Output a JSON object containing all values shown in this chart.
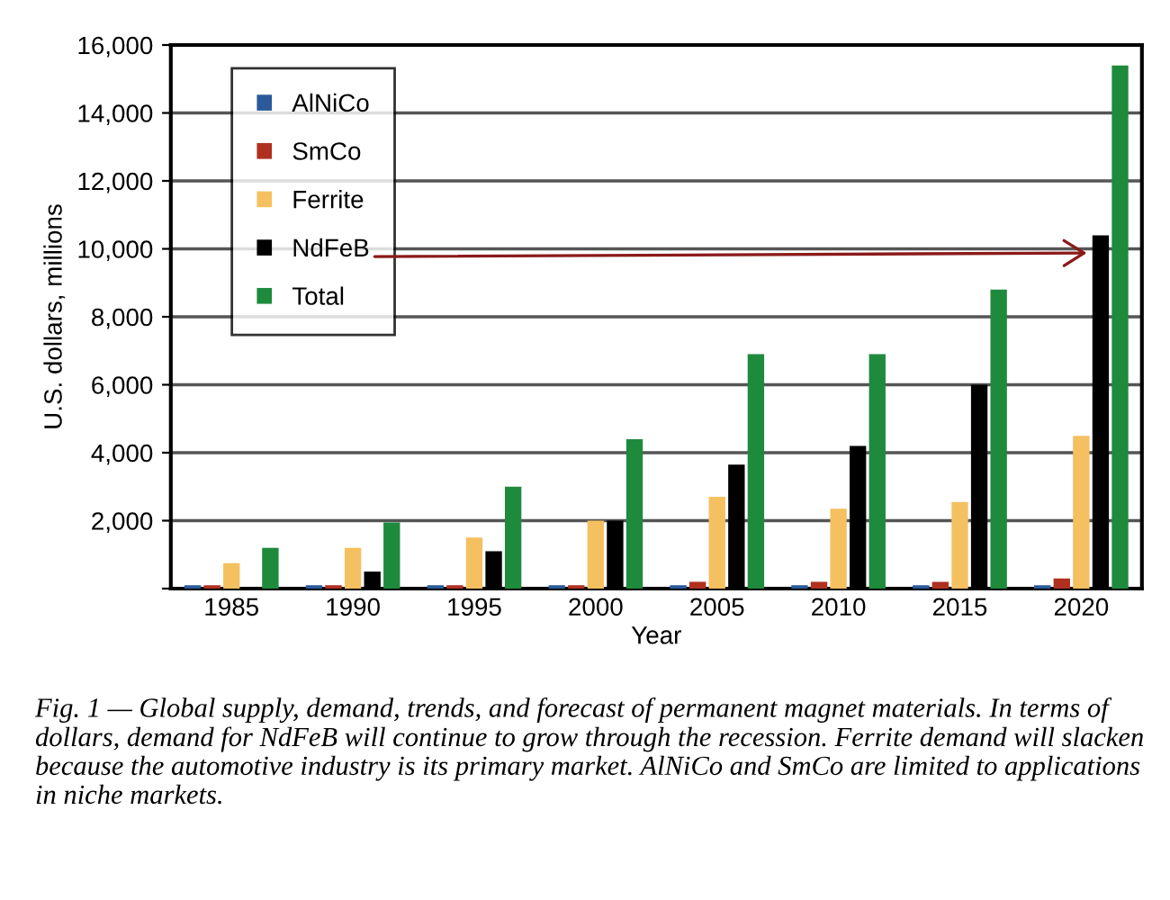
{
  "chart_data": {
    "type": "bar",
    "xlabel": "Year",
    "ylabel": "U.S. dollars, millions",
    "categories": [
      "1985",
      "1990",
      "1995",
      "2000",
      "2005",
      "2010",
      "2015",
      "2020"
    ],
    "series": [
      {
        "name": "AlNiCo",
        "color": "#2a5a9a",
        "values": [
          100,
          100,
          100,
          100,
          100,
          100,
          100,
          100
        ]
      },
      {
        "name": "SmCo",
        "color": "#b03020",
        "values": [
          100,
          100,
          100,
          100,
          200,
          200,
          200,
          300
        ]
      },
      {
        "name": "Ferrite",
        "color": "#f5c060",
        "values": [
          750,
          1200,
          1500,
          2000,
          2700,
          2350,
          2550,
          4500
        ]
      },
      {
        "name": "NdFeB",
        "color": "#000000",
        "values": [
          0,
          500,
          1100,
          2000,
          3650,
          4200,
          6000,
          10400
        ]
      },
      {
        "name": "Total",
        "color": "#1e8a3c",
        "values": [
          1200,
          1950,
          3000,
          4400,
          6900,
          6900,
          8800,
          15400
        ]
      }
    ],
    "ylim": [
      0,
      16000
    ],
    "yticks": [
      {
        "value": 0,
        "label": null
      },
      {
        "value": 2000,
        "label": "2,000"
      },
      {
        "value": 4000,
        "label": "4,000"
      },
      {
        "value": 6000,
        "label": "6,000"
      },
      {
        "value": 8000,
        "label": "8,000"
      },
      {
        "value": 10000,
        "label": "10,000"
      },
      {
        "value": 12000,
        "label": "12,000"
      },
      {
        "value": 14000,
        "label": "14,000"
      },
      {
        "value": 16000,
        "label": "16,000"
      }
    ],
    "grid": "y",
    "legend": "top left",
    "annotations": [
      "Fig. 1 — Global supply, demand, trends, and forecast of permanent magnet materials. In terms of dollars, demand for NdFeB will continue to grow through the recession. Ferrite demand will slacken because the automotive industry is its primary market. AlNiCo and SmCo are limited to applications in niche markets."
    ]
  }
}
